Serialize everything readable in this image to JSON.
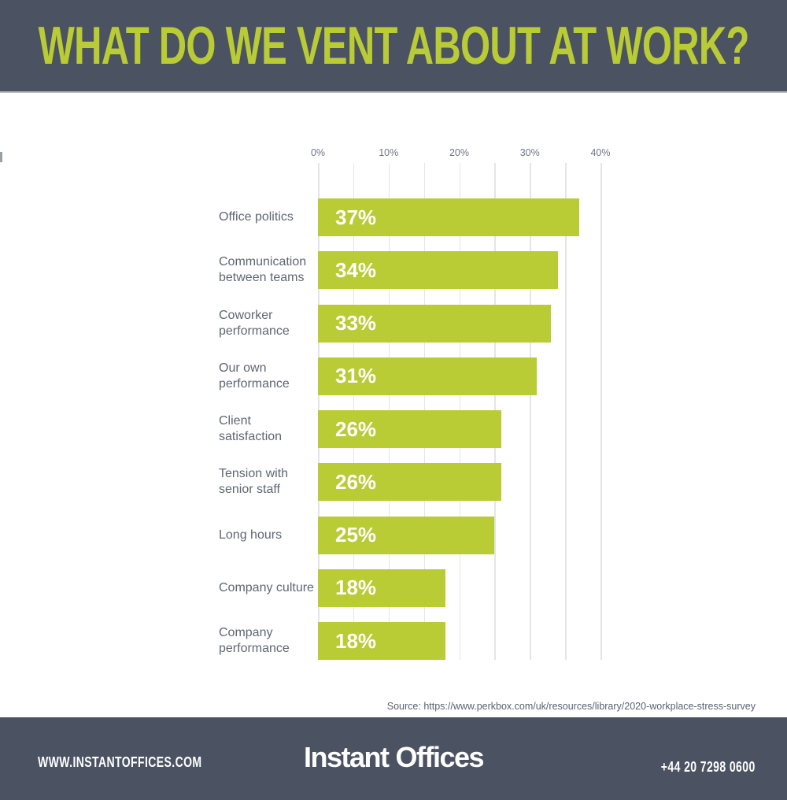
{
  "header": {
    "title": "WHAT DO WE VENT ABOUT AT WORK?"
  },
  "colors": {
    "accent_green": "#b9cb35",
    "slate_background": "#4b5262",
    "category_label_gray": "#5f6673",
    "tick_label_gray": "#6f7587",
    "gridline_gray": "#e5e5e7",
    "bar_value_white": "#ffffff"
  },
  "chart_data": {
    "type": "bar",
    "orientation": "horizontal",
    "title": "WHAT DO WE VENT ABOUT AT WORK?",
    "categories": [
      "Office politics",
      "Communication between teams",
      "Coworker performance",
      "Our own performance",
      "Client satisfaction",
      "Tension with senior staff",
      "Long hours",
      "Company culture",
      "Company performance"
    ],
    "values": [
      37,
      34,
      33,
      31,
      26,
      26,
      25,
      18,
      18
    ],
    "value_labels": [
      "37%",
      "34%",
      "33%",
      "31%",
      "26%",
      "26%",
      "25%",
      "18%",
      "18%"
    ],
    "x_ticks": [
      "0%",
      "10%",
      "20%",
      "30%",
      "40%"
    ],
    "xlim": [
      0,
      40
    ],
    "grid_step_pct": 5,
    "grid": "vertical-on",
    "legend": "none",
    "bar_color": "#b9cb35"
  },
  "source": {
    "text": "Source: https://www.perkbox.com/uk/resources/library/2020-workplace-stress-survey"
  },
  "footer": {
    "website": "WWW.INSTANTOFFICES.COM",
    "logo_part1": "Instant",
    "logo_part2": "Offices",
    "phone": "+44 20 7298 0600"
  }
}
